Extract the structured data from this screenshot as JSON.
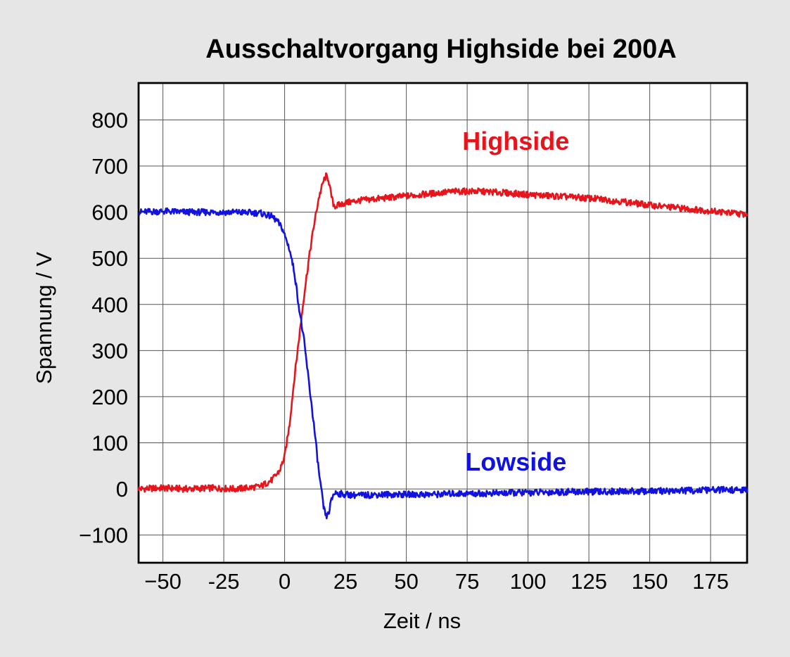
{
  "chart_data": {
    "type": "line",
    "title": "Ausschaltvorgang Highside bei 200A",
    "xlabel": "Zeit / ns",
    "ylabel": "Spannung / V",
    "xlim": [
      -60,
      190
    ],
    "ylim": [
      -160,
      880
    ],
    "x_ticks": [
      -50,
      -25,
      0,
      25,
      50,
      75,
      100,
      125,
      150,
      175
    ],
    "x_tick_labels": [
      "−50",
      "-25",
      "0",
      "25",
      "50",
      "75",
      "100",
      "125",
      "150",
      "175"
    ],
    "y_ticks": [
      -100,
      0,
      100,
      200,
      300,
      400,
      500,
      600,
      700,
      800
    ],
    "y_tick_labels": [
      "−100",
      "0",
      "100",
      "200",
      "300",
      "400",
      "500",
      "600",
      "700",
      "800"
    ],
    "grid": true,
    "series": [
      {
        "name": "Highside",
        "color": "#e8141c",
        "label_at": [
          95,
          735
        ],
        "x": [
          -60,
          -50,
          -40,
          -30,
          -20,
          -10,
          -5,
          -2,
          0,
          2,
          4,
          6,
          8,
          10,
          12,
          14,
          16,
          17,
          18,
          19,
          20,
          21,
          22,
          25,
          30,
          40,
          50,
          60,
          70,
          80,
          90,
          100,
          110,
          120,
          130,
          140,
          150,
          160,
          170,
          180,
          190
        ],
        "y": [
          0,
          2,
          0,
          2,
          0,
          5,
          20,
          40,
          70,
          140,
          240,
          330,
          420,
          500,
          570,
          630,
          668,
          678,
          672,
          640,
          618,
          612,
          615,
          620,
          625,
          630,
          635,
          640,
          645,
          645,
          642,
          638,
          635,
          632,
          628,
          622,
          615,
          610,
          605,
          600,
          595
        ]
      },
      {
        "name": "Lowside",
        "color": "#1212e0",
        "label_at": [
          95,
          40
        ],
        "x": [
          -60,
          -50,
          -40,
          -30,
          -20,
          -10,
          -5,
          -3,
          -1,
          0,
          2,
          4,
          6,
          8,
          10,
          12,
          14,
          16,
          17,
          18,
          19,
          20,
          21,
          22,
          25,
          30,
          40,
          50,
          60,
          70,
          80,
          90,
          100,
          110,
          120,
          130,
          140,
          150,
          160,
          170,
          180,
          190
        ],
        "y": [
          600,
          602,
          600,
          600,
          600,
          598,
          590,
          580,
          565,
          550,
          520,
          470,
          390,
          320,
          230,
          140,
          40,
          -40,
          -60,
          -55,
          -30,
          -12,
          -8,
          -10,
          -12,
          -14,
          -12,
          -12,
          -12,
          -10,
          -10,
          -9,
          -8,
          -7,
          -6,
          -6,
          -5,
          -5,
          -4,
          -3,
          -2,
          -3
        ]
      }
    ]
  }
}
